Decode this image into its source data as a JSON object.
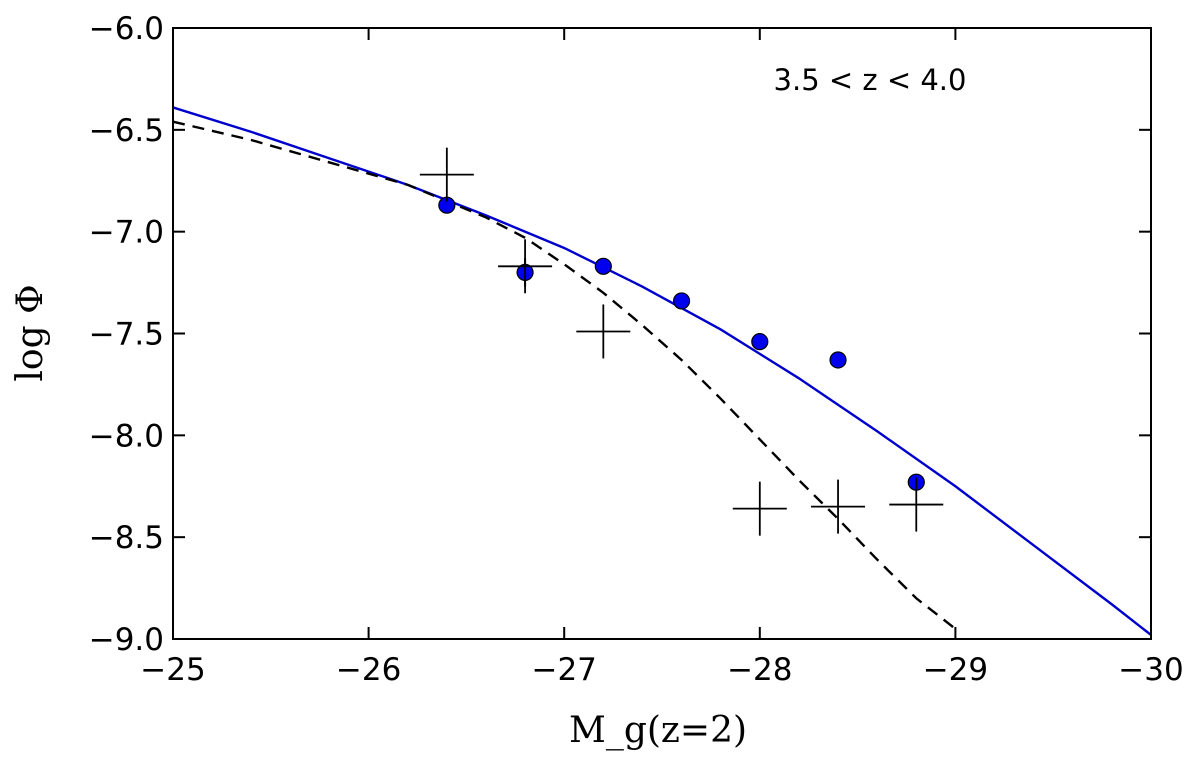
{
  "chart_data": {
    "type": "scatter",
    "title": "",
    "annotation": "3.5 < z < 4.0",
    "xlabel": "M_g(z=2)",
    "ylabel": "log Φ",
    "xlim": [
      -25,
      -30
    ],
    "ylim": [
      -9.0,
      -6.0
    ],
    "x_inverted": true,
    "grid": false,
    "legend": "none",
    "x_ticks": [
      -25,
      -26,
      -27,
      -28,
      -29,
      -30
    ],
    "x_tick_labels": [
      "−25",
      "−26",
      "−27",
      "−28",
      "−29",
      "−30"
    ],
    "y_ticks": [
      -6.0,
      -6.5,
      -7.0,
      -7.5,
      -8.0,
      -8.5,
      -9.0
    ],
    "y_tick_labels": [
      "−6.0",
      "−6.5",
      "−7.0",
      "−7.5",
      "−8.0",
      "−8.5",
      "−9.0"
    ],
    "colors": {
      "blue_points": "#0000ee",
      "blue_line": "#0000cc",
      "black": "#000000"
    },
    "series": [
      {
        "style": "blue-line",
        "x": [
          -25.0,
          -25.4,
          -25.8,
          -26.2,
          -26.6,
          -27.0,
          -27.4,
          -27.8,
          -28.2,
          -28.6,
          -29.0,
          -29.4,
          -29.8,
          -30.0
        ],
        "y": [
          -6.39,
          -6.51,
          -6.64,
          -6.77,
          -6.92,
          -7.08,
          -7.27,
          -7.48,
          -7.72,
          -7.98,
          -8.25,
          -8.54,
          -8.83,
          -8.98
        ]
      },
      {
        "style": "black-dashed-line",
        "x": [
          -25.0,
          -25.4,
          -25.8,
          -26.2,
          -26.6,
          -26.8,
          -27.0,
          -27.2,
          -27.4,
          -27.6,
          -27.8,
          -28.0,
          -28.2,
          -28.4,
          -28.6,
          -28.8,
          -29.0
        ],
        "y": [
          -6.46,
          -6.55,
          -6.66,
          -6.77,
          -6.93,
          -7.03,
          -7.16,
          -7.3,
          -7.46,
          -7.63,
          -7.82,
          -8.02,
          -8.22,
          -8.41,
          -8.61,
          -8.8,
          -8.95
        ]
      },
      {
        "style": "blue-circle-points",
        "points": [
          {
            "x": -26.4,
            "y": -6.87
          },
          {
            "x": -26.8,
            "y": -7.2,
            "yerr": 0.07
          },
          {
            "x": -27.2,
            "y": -7.17
          },
          {
            "x": -27.6,
            "y": -7.34
          },
          {
            "x": -28.0,
            "y": -7.54
          },
          {
            "x": -28.4,
            "y": -7.63
          },
          {
            "x": -28.8,
            "y": -8.23
          }
        ]
      },
      {
        "style": "black-plus-points",
        "points": [
          {
            "x": -26.4,
            "y": -6.72
          },
          {
            "x": -26.8,
            "y": -7.17
          },
          {
            "x": -27.2,
            "y": -7.49
          },
          {
            "x": -28.0,
            "y": -8.36
          },
          {
            "x": -28.4,
            "y": -8.35
          },
          {
            "x": -28.8,
            "y": -8.34
          }
        ]
      }
    ]
  }
}
